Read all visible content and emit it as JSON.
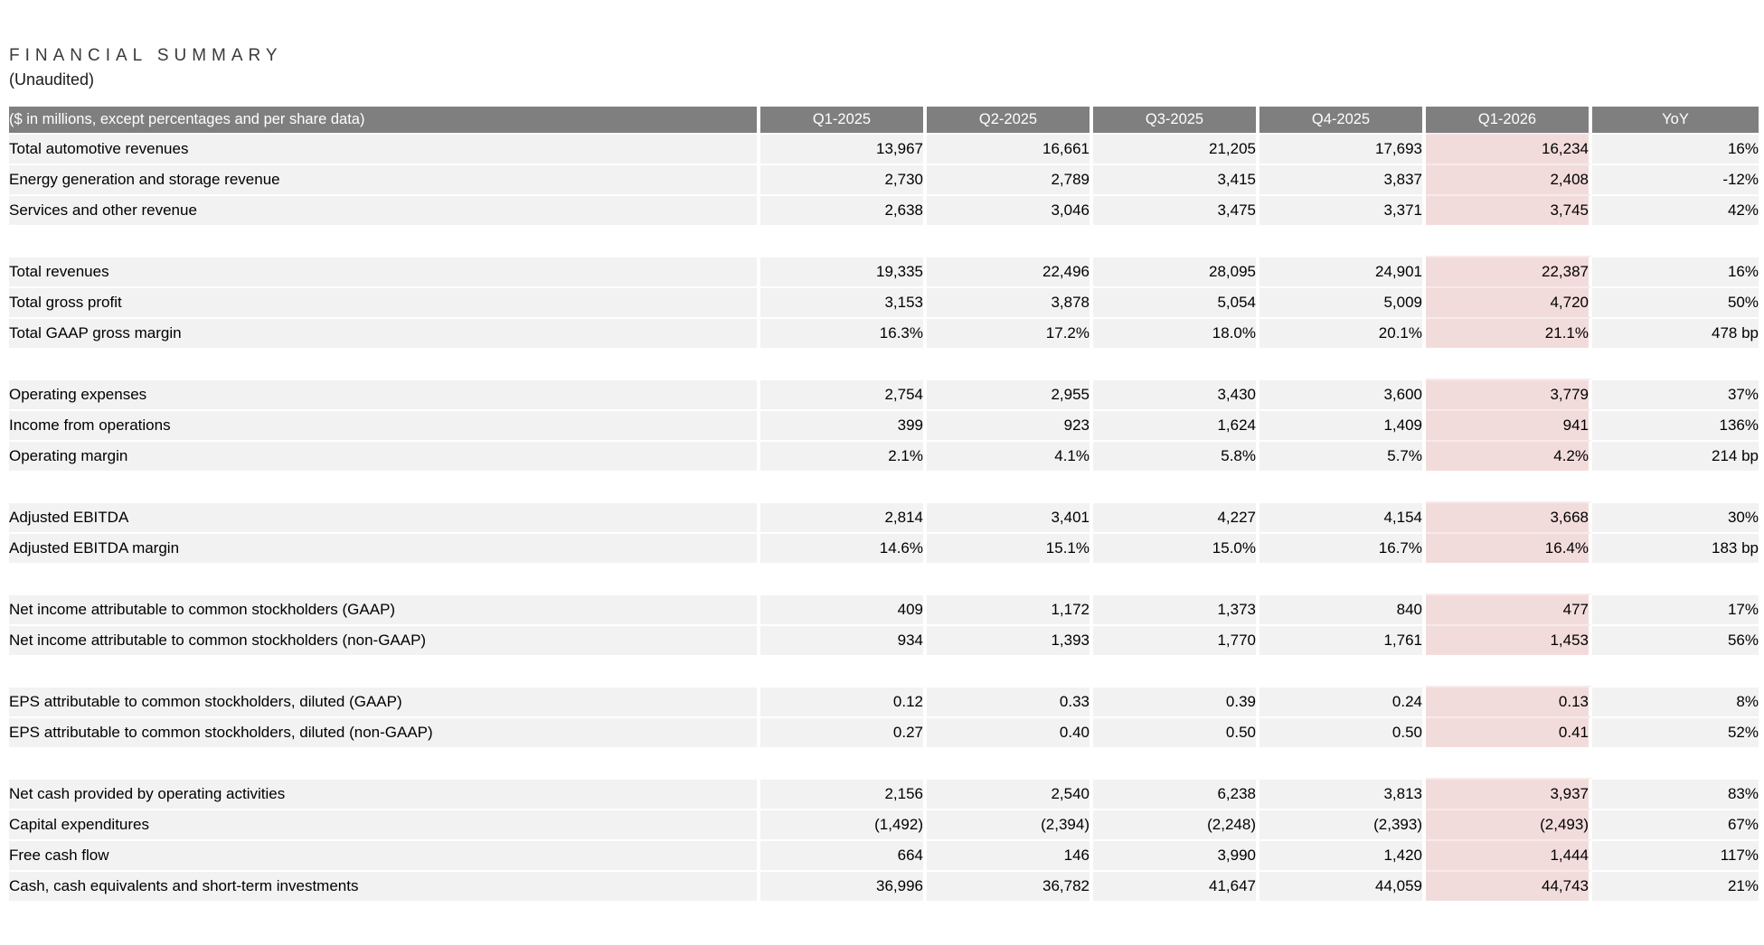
{
  "page": {
    "title": "FINANCIAL SUMMARY",
    "subtitle": "(Unaudited)"
  },
  "colors": {
    "header_bg": "#7f7f7f",
    "header_text": "#ffffff",
    "row_bg": "#f2f2f2",
    "highlight_bg": "#f2dcdb",
    "body_text": "#000000",
    "title_text": "#3a3a3a"
  },
  "table": {
    "header": {
      "label": "($ in millions, except percentages and per share data)",
      "columns": [
        "Q1-2025",
        "Q2-2025",
        "Q3-2025",
        "Q4-2025",
        "Q1-2026",
        "YoY"
      ],
      "highlight_column": "Q1-2026",
      "highlight_index": 4
    },
    "groups": [
      {
        "rows": [
          {
            "label": "Total automotive revenues",
            "values": [
              "13,967",
              "16,661",
              "21,205",
              "17,693",
              "16,234",
              "16%"
            ]
          },
          {
            "label": "Energy generation and storage revenue",
            "values": [
              "2,730",
              "2,789",
              "3,415",
              "3,837",
              "2,408",
              "-12%"
            ]
          },
          {
            "label": "Services and other revenue",
            "values": [
              "2,638",
              "3,046",
              "3,475",
              "3,371",
              "3,745",
              "42%"
            ]
          }
        ]
      },
      {
        "rows": [
          {
            "label": "Total revenues",
            "values": [
              "19,335",
              "22,496",
              "28,095",
              "24,901",
              "22,387",
              "16%"
            ]
          },
          {
            "label": "Total gross profit",
            "values": [
              "3,153",
              "3,878",
              "5,054",
              "5,009",
              "4,720",
              "50%"
            ]
          },
          {
            "label": "Total GAAP gross margin",
            "values": [
              "16.3%",
              "17.2%",
              "18.0%",
              "20.1%",
              "21.1%",
              "478 bp"
            ]
          }
        ]
      },
      {
        "rows": [
          {
            "label": "Operating expenses",
            "values": [
              "2,754",
              "2,955",
              "3,430",
              "3,600",
              "3,779",
              "37%"
            ]
          },
          {
            "label": "Income from operations",
            "values": [
              "399",
              "923",
              "1,624",
              "1,409",
              "941",
              "136%"
            ]
          },
          {
            "label": "Operating margin",
            "values": [
              "2.1%",
              "4.1%",
              "5.8%",
              "5.7%",
              "4.2%",
              "214 bp"
            ]
          }
        ]
      },
      {
        "rows": [
          {
            "label": "Adjusted EBITDA",
            "values": [
              "2,814",
              "3,401",
              "4,227",
              "4,154",
              "3,668",
              "30%"
            ]
          },
          {
            "label": "Adjusted EBITDA margin",
            "values": [
              "14.6%",
              "15.1%",
              "15.0%",
              "16.7%",
              "16.4%",
              "183 bp"
            ]
          }
        ]
      },
      {
        "rows": [
          {
            "label": "Net income attributable to common stockholders (GAAP)",
            "values": [
              "409",
              "1,172",
              "1,373",
              "840",
              "477",
              "17%"
            ]
          },
          {
            "label": "Net income attributable to common stockholders (non-GAAP)",
            "values": [
              "934",
              "1,393",
              "1,770",
              "1,761",
              "1,453",
              "56%"
            ]
          }
        ]
      },
      {
        "rows": [
          {
            "label": "EPS attributable to common stockholders, diluted (GAAP)",
            "values": [
              "0.12",
              "0.33",
              "0.39",
              "0.24",
              "0.13",
              "8%"
            ]
          },
          {
            "label": "EPS attributable to common stockholders, diluted (non-GAAP)",
            "values": [
              "0.27",
              "0.40",
              "0.50",
              "0.50",
              "0.41",
              "52%"
            ]
          }
        ]
      },
      {
        "rows": [
          {
            "label": "Net cash provided by operating activities",
            "values": [
              "2,156",
              "2,540",
              "6,238",
              "3,813",
              "3,937",
              "83%"
            ]
          },
          {
            "label": "Capital expenditures",
            "values": [
              "(1,492)",
              "(2,394)",
              "(2,248)",
              "(2,393)",
              "(2,493)",
              "67%"
            ]
          },
          {
            "label": "Free cash flow",
            "values": [
              "664",
              "146",
              "3,990",
              "1,420",
              "1,444",
              "117%"
            ]
          },
          {
            "label": "Cash, cash equivalents and short-term investments",
            "values": [
              "36,996",
              "36,782",
              "41,647",
              "44,059",
              "44,743",
              "21%"
            ]
          }
        ]
      }
    ]
  }
}
